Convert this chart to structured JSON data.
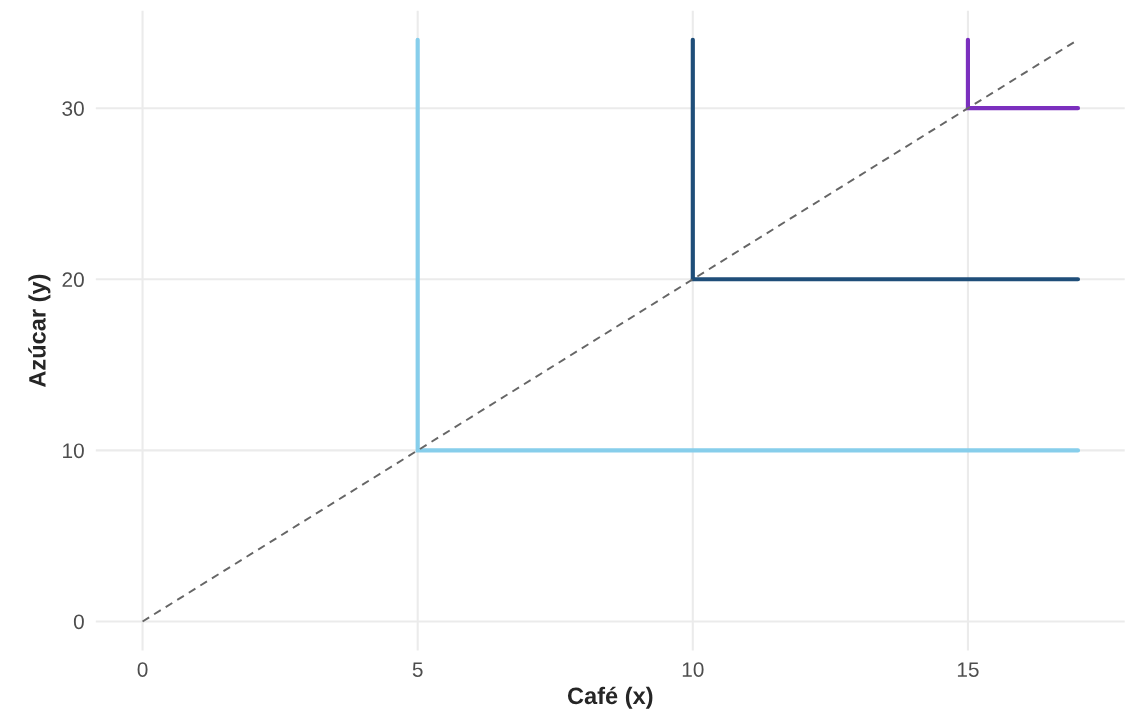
{
  "chart_data": {
    "type": "line",
    "xlabel": "Café (x)",
    "ylabel": "Azúcar (y)",
    "xlim": [
      -0.85,
      17.85
    ],
    "ylim": [
      -1.7,
      35.7
    ],
    "xticks": [
      0,
      5,
      10,
      15
    ],
    "yticks": [
      0,
      10,
      20,
      30
    ],
    "grid": true,
    "legend": false,
    "marker": "none",
    "series": [
      {
        "color": "#87ceeb",
        "x": [
          5,
          5,
          17
        ],
        "values": [
          34,
          10,
          10
        ],
        "line_style": "solid"
      },
      {
        "color": "#1f4e79",
        "x": [
          10,
          10,
          17
        ],
        "values": [
          34,
          20,
          20
        ],
        "line_style": "solid"
      },
      {
        "color": "#7b2fbe",
        "x": [
          15,
          15,
          17
        ],
        "values": [
          34,
          30,
          30
        ],
        "line_style": "solid"
      },
      {
        "color": "#666666",
        "x": [
          0,
          17
        ],
        "values": [
          0,
          34
        ],
        "line_style": "dashed"
      }
    ]
  }
}
